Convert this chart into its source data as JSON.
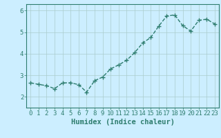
{
  "x": [
    0,
    1,
    2,
    3,
    4,
    5,
    6,
    7,
    8,
    9,
    10,
    11,
    12,
    13,
    14,
    15,
    16,
    17,
    18,
    19,
    20,
    21,
    22,
    23
  ],
  "y": [
    2.65,
    2.58,
    2.52,
    2.38,
    2.65,
    2.65,
    2.57,
    2.22,
    2.75,
    2.92,
    3.3,
    3.48,
    3.7,
    4.05,
    4.5,
    4.75,
    5.28,
    5.75,
    5.8,
    5.3,
    5.05,
    5.55,
    5.6,
    5.38
  ],
  "line_color": "#2e7d6e",
  "marker": "+",
  "markersize": 4,
  "linewidth": 1.0,
  "linestyle": "--",
  "bg_color": "#cceeff",
  "grid_color": "#aacccc",
  "xlabel": "Humidex (Indice chaleur)",
  "xlabel_fontsize": 7.5,
  "tick_fontsize": 6.5,
  "ylim": [
    1.5,
    6.3
  ],
  "xlim": [
    -0.5,
    23.5
  ],
  "yticks": [
    2,
    3,
    4,
    5,
    6
  ],
  "xticks": [
    0,
    1,
    2,
    3,
    4,
    5,
    6,
    7,
    8,
    9,
    10,
    11,
    12,
    13,
    14,
    15,
    16,
    17,
    18,
    19,
    20,
    21,
    22,
    23
  ]
}
